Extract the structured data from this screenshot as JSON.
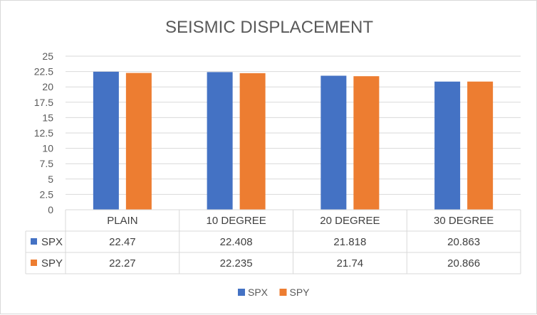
{
  "chart_data": {
    "type": "bar",
    "title": "SEISMIC DISPLACEMENT",
    "categories": [
      "PLAIN",
      "10 DEGREE",
      "20 DEGREE",
      "30 DEGREE"
    ],
    "series": [
      {
        "name": "SPX",
        "color": "#4472c4",
        "values": [
          22.47,
          22.408,
          21.818,
          20.863
        ],
        "labels": [
          "22.47",
          "22.408",
          "21.818",
          "20.863"
        ]
      },
      {
        "name": "SPY",
        "color": "#ed7d31",
        "values": [
          22.27,
          22.235,
          21.74,
          20.866
        ],
        "labels": [
          "22.27",
          "22.235",
          "21.74",
          "20.866"
        ]
      }
    ],
    "ylim": [
      0,
      25
    ],
    "yticks": [
      "0",
      "2.5",
      "5",
      "7.5",
      "10",
      "12.5",
      "15",
      "17.5",
      "20",
      "22.5",
      "25"
    ],
    "grid": true,
    "data_table": true,
    "legend_position": "bottom"
  }
}
